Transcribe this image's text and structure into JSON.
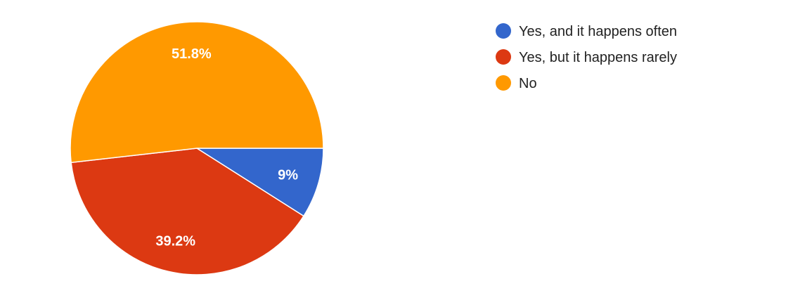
{
  "chart_data": {
    "type": "pie",
    "title": "",
    "legend_position": "right",
    "slices": [
      {
        "label": "Yes, and it happens often",
        "value": 9,
        "display": "9%",
        "color": "#3366cc"
      },
      {
        "label": "Yes, but it happens rarely",
        "value": 39.2,
        "display": "39.2%",
        "color": "#dc3912"
      },
      {
        "label": "No",
        "value": 51.8,
        "display": "51.8%",
        "color": "#ff9900"
      }
    ]
  }
}
